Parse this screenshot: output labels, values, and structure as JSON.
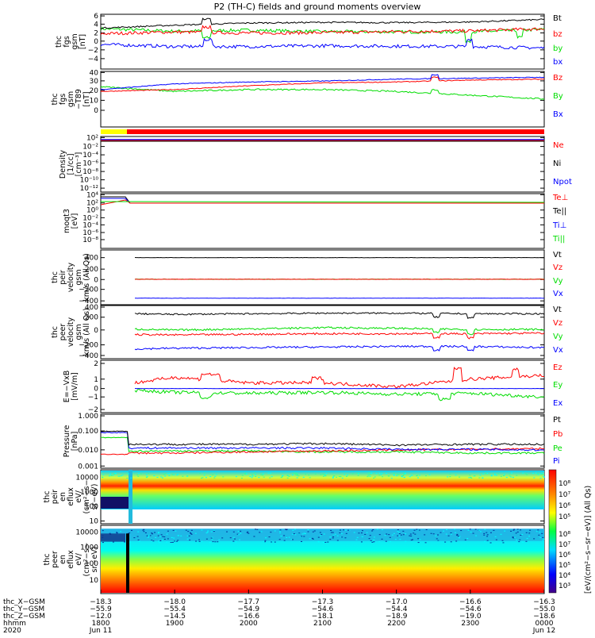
{
  "title": "P2 (TH-C) fields and ground moments overview",
  "panels": [
    {
      "id": "fgs",
      "ylabel": [
        "thc",
        "fgs",
        "gsm",
        "[nT]"
      ],
      "ticks": [
        "6",
        "4",
        "2",
        "0",
        "−2",
        "−4"
      ],
      "legend": [
        {
          "label": "Bt",
          "color": "#000000"
        },
        {
          "label": "bz",
          "color": "#ff0000"
        },
        {
          "label": "by",
          "color": "#00dd00"
        },
        {
          "label": "bx",
          "color": "#0000ff"
        }
      ]
    },
    {
      "id": "t89",
      "ylabel": [
        "thc",
        "fgs",
        "gsm",
        "−T89",
        "[nT]"
      ],
      "ticks": [
        "40",
        "30",
        "20",
        "10",
        "0"
      ],
      "legend": [
        {
          "label": "Bz",
          "color": "#ff0000"
        },
        {
          "label": "By",
          "color": "#00dd00"
        },
        {
          "label": "Bx",
          "color": "#0000ff"
        }
      ]
    },
    {
      "id": "density",
      "ylabel": [
        "Density",
        "[1/cc]",
        "[cm⁻³]"
      ],
      "ticks": [
        "10²",
        "10⁻²",
        "10⁻⁴",
        "10⁻⁶",
        "10⁻⁸",
        "10⁻¹⁰",
        "10⁻¹²"
      ],
      "legend": [
        {
          "label": "Ne",
          "color": "#ff0000"
        },
        {
          "label": "Ni",
          "color": "#000000"
        },
        {
          "label": "Npot",
          "color": "#0000ff"
        }
      ]
    },
    {
      "id": "temp",
      "ylabel": [
        "moqt3",
        "[eV]"
      ],
      "ticks": [
        "10⁴",
        "10²",
        "10⁰",
        "10⁻²",
        "10⁻⁴",
        "10⁻⁶",
        "10⁻⁸"
      ],
      "legend": [
        {
          "label": "Te⊥",
          "color": "#ff0000"
        },
        {
          "label": "Te||",
          "color": "#000000"
        },
        {
          "label": "Ti⊥",
          "color": "#0000ff"
        },
        {
          "label": "Ti||",
          "color": "#00dd00"
        }
      ]
    },
    {
      "id": "vgsm",
      "ylabel": [
        "thc",
        "peir",
        "velocity",
        "gsm",
        "km/s (All Qs)"
      ],
      "ticks": [
        "400",
        "200",
        "0",
        "−200",
        "−400"
      ],
      "legend": [
        {
          "label": "Vt",
          "color": "#000000"
        },
        {
          "label": "Vz",
          "color": "#ff0000"
        },
        {
          "label": "Vy",
          "color": "#00dd00"
        },
        {
          "label": "Vx",
          "color": "#0000ff"
        }
      ]
    },
    {
      "id": "vgsm2",
      "ylabel": [
        "thc",
        "peer",
        "velocity",
        "gsm",
        "km/s (All Qs)"
      ],
      "ticks": [
        "400",
        "200",
        "0",
        "−200",
        "−400"
      ],
      "legend": [
        {
          "label": "Vt",
          "color": "#000000"
        },
        {
          "label": "Vz",
          "color": "#ff0000"
        },
        {
          "label": "Vy",
          "color": "#00dd00"
        },
        {
          "label": "Vx",
          "color": "#0000ff"
        }
      ]
    },
    {
      "id": "efield",
      "ylabel": [
        "E=−VxB",
        "[mV/m]"
      ],
      "ticks": [
        "2",
        "1",
        "0",
        "−1",
        "−2"
      ],
      "legend": [
        {
          "label": "Ez",
          "color": "#ff0000"
        },
        {
          "label": "Ey",
          "color": "#00dd00"
        },
        {
          "label": "Ex",
          "color": "#0000ff"
        }
      ]
    },
    {
      "id": "pressure",
      "ylabel": [
        "Pressure",
        "[nPa]"
      ],
      "ticks": [
        "1.000",
        "0.100",
        "0.010",
        "0.001"
      ],
      "legend": [
        {
          "label": "Pt",
          "color": "#000000"
        },
        {
          "label": "Pb",
          "color": "#ff0000"
        },
        {
          "label": "Pe",
          "color": "#00dd00"
        },
        {
          "label": "Pi",
          "color": "#0000ff"
        }
      ]
    },
    {
      "id": "peir",
      "ylabel": [
        "thc",
        "peir",
        "en",
        "eflux",
        "eV/",
        "(cm²−s−",
        "sr−eV)"
      ],
      "ticks": [
        "10000",
        "1000",
        "100",
        "10"
      ]
    },
    {
      "id": "peer",
      "ylabel": [
        "thc",
        "peer",
        "en",
        "eflux",
        "eV/",
        "(cm²−s−",
        "sr−eV)"
      ],
      "ticks": [
        "10000",
        "1000",
        "100",
        "10"
      ]
    }
  ],
  "colorbar": {
    "label": "[eV/(cm²−s−sr−eV)] (All Qs)",
    "ticks1": [
      "10⁸",
      "10⁷",
      "10⁶",
      "10⁵"
    ],
    "ticks2": [
      "10⁸",
      "10⁷",
      "10⁶",
      "10⁵",
      "10⁴",
      "10³"
    ]
  },
  "xaxis": {
    "rows": [
      {
        "label": "thc_X−GSM",
        "values": [
          "−18.3",
          "−18.0",
          "−17.7",
          "−17.3",
          "−17.0",
          "−16.6",
          "−16.3"
        ]
      },
      {
        "label": "thc_Y−GSM",
        "values": [
          "−55.9",
          "−55.4",
          "−54.9",
          "−54.6",
          "−54.4",
          "−54.6",
          "−55.0"
        ]
      },
      {
        "label": "thc_Z−GSM",
        "values": [
          "−12.0",
          "−14.5",
          "−16.6",
          "−18.1",
          "−18.9",
          "−19.0",
          "−18.6"
        ]
      },
      {
        "label": "hhmm",
        "values": [
          "1800",
          "1900",
          "2000",
          "2100",
          "2200",
          "2300",
          "0000"
        ]
      }
    ],
    "year": "2020",
    "date_start": "Jun 11",
    "date_end": "Jun 12"
  },
  "chart_data": {
    "type": "line",
    "title": "P2 (TH-C) fields and ground moments overview",
    "x": [
      "1800",
      "1900",
      "2000",
      "2100",
      "2200",
      "2300",
      "0000"
    ],
    "series": [
      {
        "panel": "fgs",
        "name": "Bt",
        "values": [
          2.6,
          3.4,
          4.0,
          4.2,
          4.1,
          4.3,
          5.0
        ]
      },
      {
        "panel": "fgs",
        "name": "bz",
        "values": [
          1.0,
          1.5,
          1.2,
          1.3,
          1.6,
          1.8,
          2.4
        ]
      },
      {
        "panel": "fgs",
        "name": "by",
        "values": [
          2.4,
          1.7,
          2.0,
          1.6,
          1.5,
          1.5,
          2.2
        ]
      },
      {
        "panel": "fgs",
        "name": "bx",
        "values": [
          -2.0,
          -2.6,
          -2.6,
          -2.4,
          -2.5,
          -2.6,
          -3.0
        ]
      },
      {
        "panel": "t89",
        "name": "Bz",
        "values": [
          20,
          22,
          26,
          29,
          30,
          32,
          33
        ]
      },
      {
        "panel": "t89",
        "name": "By",
        "values": [
          25,
          20,
          22,
          22,
          20,
          16,
          12
        ]
      },
      {
        "panel": "t89",
        "name": "Bx",
        "values": [
          22,
          28,
          30,
          31,
          33,
          34,
          35
        ]
      },
      {
        "panel": "vgsm",
        "name": "Vt",
        "values": [
          400,
          400,
          400,
          400,
          400,
          400,
          400
        ]
      },
      {
        "panel": "vgsm",
        "name": "Vz",
        "values": [
          0,
          0,
          0,
          0,
          0,
          0,
          0
        ]
      },
      {
        "panel": "vgsm",
        "name": "Vy",
        "values": [
          0,
          0,
          0,
          0,
          0,
          0,
          0
        ]
      },
      {
        "panel": "vgsm",
        "name": "Vx",
        "values": [
          -350,
          -350,
          -350,
          -350,
          -350,
          -350,
          -350
        ]
      },
      {
        "panel": "vgsm2",
        "name": "Vt",
        "values": [
          300,
          280,
          290,
          300,
          300,
          290,
          290
        ]
      },
      {
        "panel": "vgsm2",
        "name": "Vz",
        "values": [
          -50,
          -60,
          -50,
          -40,
          -40,
          -40,
          -30
        ]
      },
      {
        "panel": "vgsm2",
        "name": "Vy",
        "values": [
          50,
          20,
          40,
          60,
          50,
          30,
          30
        ]
      },
      {
        "panel": "vgsm2",
        "name": "Vx",
        "values": [
          -300,
          -280,
          -270,
          -260,
          -250,
          -250,
          -270
        ]
      },
      {
        "panel": "efield",
        "name": "Ez",
        "values": [
          0.1,
          1.2,
          0.6,
          0.6,
          0.2,
          1.0,
          1.4
        ]
      },
      {
        "panel": "efield",
        "name": "Ey",
        "values": [
          0.0,
          -0.4,
          -0.5,
          -0.4,
          -0.6,
          -0.5,
          -0.9
        ]
      },
      {
        "panel": "efield",
        "name": "Ex",
        "values": [
          0,
          0,
          0,
          0,
          0,
          0,
          0
        ]
      },
      {
        "panel": "pressure",
        "name": "Pt",
        "values": [
          0.12,
          0.02,
          0.02,
          0.022,
          0.018,
          0.02,
          0.02
        ]
      },
      {
        "panel": "pressure",
        "name": "Pb",
        "values": [
          0.005,
          0.006,
          0.007,
          0.008,
          0.009,
          0.01,
          0.011
        ]
      },
      {
        "panel": "pressure",
        "name": "Pe",
        "values": [
          0.05,
          0.008,
          0.008,
          0.007,
          0.007,
          0.006,
          0.006
        ]
      },
      {
        "panel": "pressure",
        "name": "Pi",
        "values": [
          0.1,
          0.012,
          0.012,
          0.012,
          0.01,
          0.01,
          0.009
        ]
      }
    ]
  }
}
